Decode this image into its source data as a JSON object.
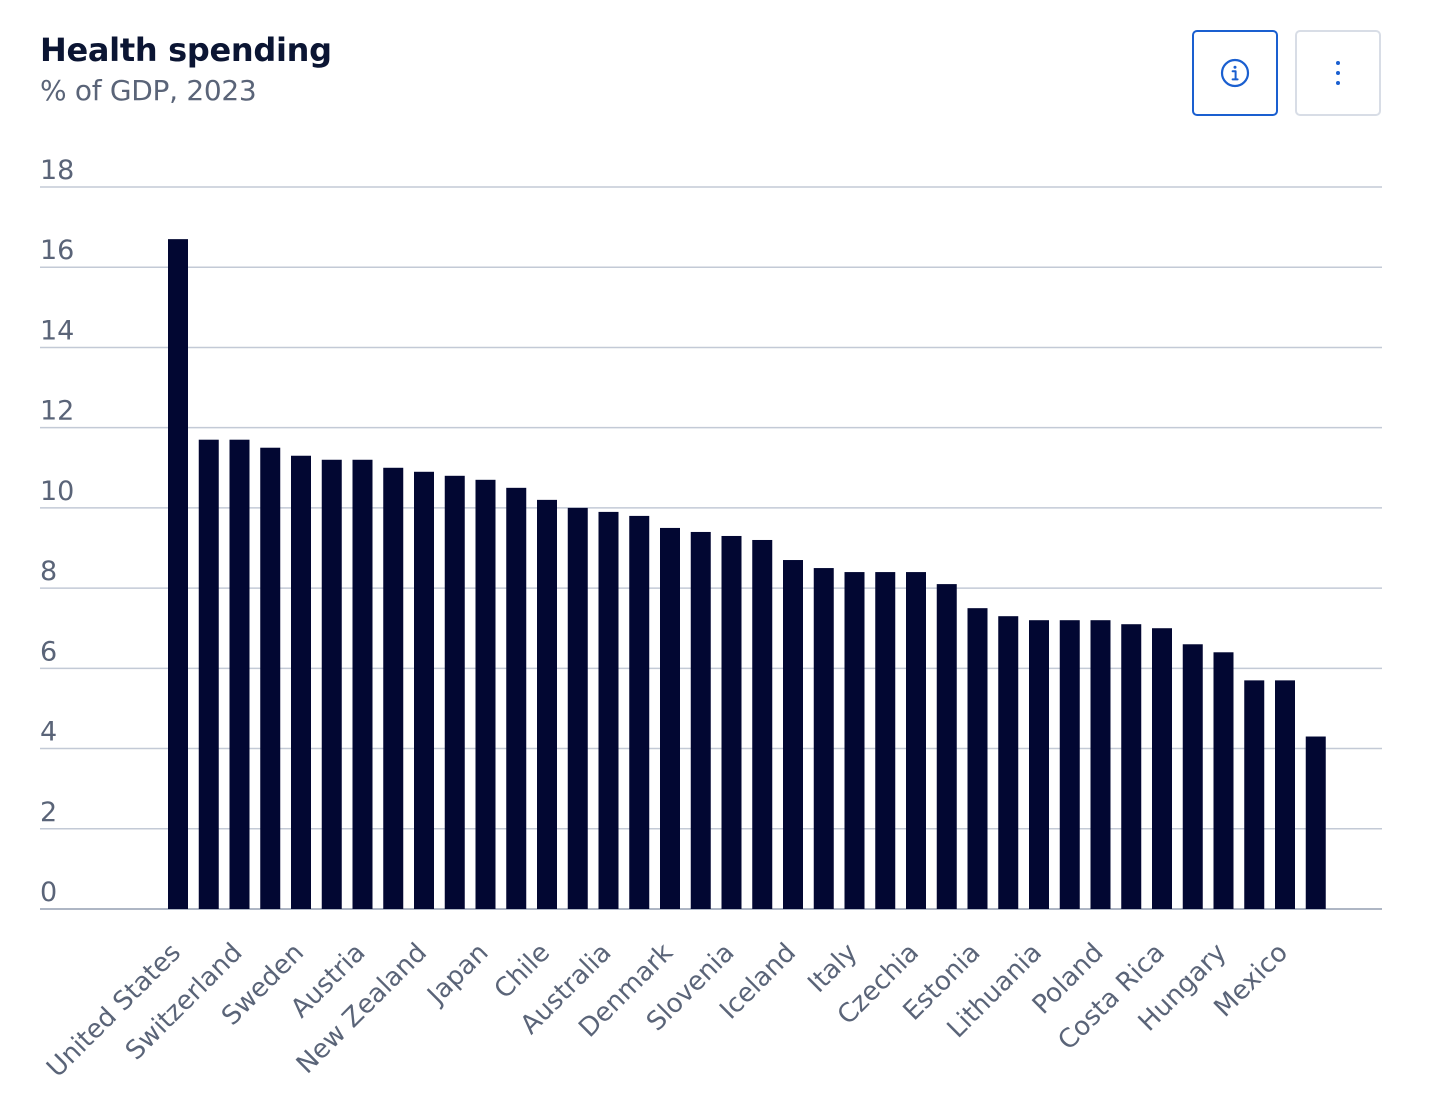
{
  "header": {
    "title": "Health spending",
    "subtitle": "% of GDP, 2023"
  },
  "toolbar": {
    "info_icon": "info-circle-icon",
    "menu_icon": "vertical-ellipsis-icon",
    "accent_color": "#1a5fd0"
  },
  "chart_data": {
    "type": "bar",
    "title": "Health spending",
    "subtitle": "% of GDP, 2023",
    "xlabel": "",
    "ylabel": "",
    "ylim": [
      0,
      18
    ],
    "yticks": [
      0,
      2,
      4,
      6,
      8,
      10,
      12,
      14,
      16,
      18
    ],
    "grid": true,
    "bar_color": "#020732",
    "categories": [
      "United States",
      "",
      "Switzerland",
      "",
      "Sweden",
      "",
      "Austria",
      "",
      "New Zealand",
      "",
      "Japan",
      "",
      "Chile",
      "",
      "Australia",
      "",
      "Denmark",
      "",
      "Slovenia",
      "",
      "Iceland",
      "",
      "Italy",
      "",
      "Czechia",
      "",
      "Estonia",
      "",
      "Lithuania",
      "",
      "Poland",
      "",
      "Costa Rica",
      "",
      "Hungary",
      "",
      "Mexico",
      ""
    ],
    "values": [
      16.7,
      11.7,
      11.7,
      11.5,
      11.3,
      11.2,
      11.2,
      11.0,
      10.9,
      10.8,
      10.7,
      10.5,
      10.2,
      10.0,
      9.9,
      9.8,
      9.5,
      9.4,
      9.3,
      9.2,
      8.7,
      8.5,
      8.4,
      8.4,
      8.4,
      8.1,
      7.5,
      7.3,
      7.2,
      7.2,
      7.2,
      7.1,
      7.0,
      6.6,
      6.4,
      5.7,
      5.7,
      4.3
    ]
  }
}
